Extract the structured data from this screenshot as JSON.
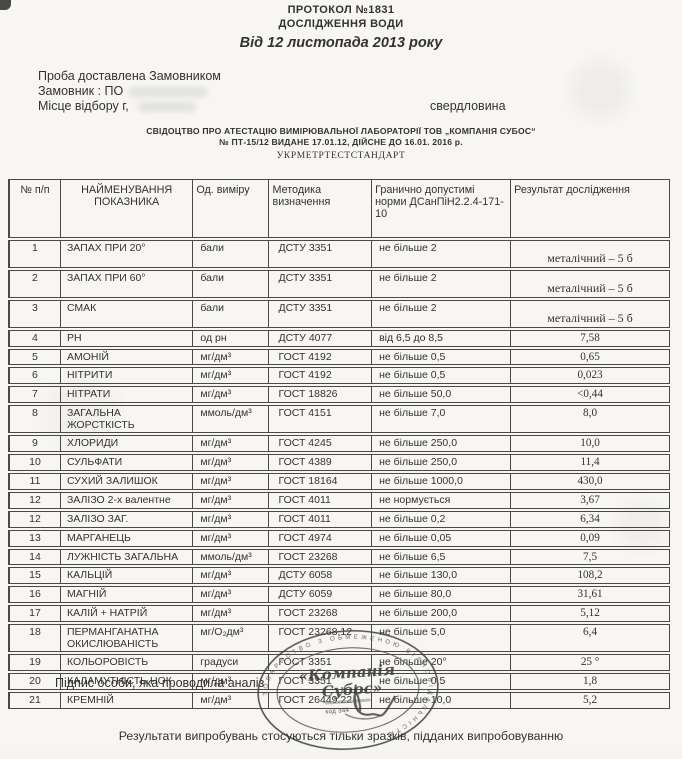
{
  "doc": {
    "title_line1": "ПРОТОКОЛ №1831",
    "title_line2": "ДОСЛІДЖЕННЯ ВОДИ",
    "title_line3": "Від 12 листопада 2013 року",
    "sample_line": "Проба доставлена Замовником",
    "customer_line": "Замовник : ПО",
    "place_label": "Місце відбору г,",
    "place_value": "свердловина",
    "certificate_line1": "СВІДОЦТВО ПРО АТЕСТАЦІЮ ВИМІРЮВАЛЬНОЇ ЛАБОРАТОРІЇ ТОВ „КОМПАНІЯ СУБОС“",
    "certificate_line2": "№ ПТ-15/12 ВИДАНЕ 17.01.12, ДІЙСНЕ ДО 16.01. 2016 р.",
    "certificate_line3": "УКРМЕТРТЕСТСТАНДАРТ",
    "signature_line": "Підпис особи, яка проводила аналіз",
    "footer_line": "Результати випробувань стосуються тільки зразків, підданих випробовуванню"
  },
  "table": {
    "headers": [
      "№ п/п",
      "НАЙМЕНУВАННЯ ПОКАЗНИКА",
      "Од. виміру",
      "Методика визначення",
      "Гранично допустимі норми ДСанПіН2.2.4-171-10",
      "Результат дослідження"
    ],
    "rows": [
      {
        "n": "1",
        "name": "ЗАПАХ ПРИ 20°",
        "unit": "бали",
        "method": "ДСТУ 3351",
        "norm": "не більше 2",
        "result": "металічний – 5 б",
        "result_low": true
      },
      {
        "n": "2",
        "name": "ЗАПАХ ПРИ 60°",
        "unit": "бали",
        "method": "ДСТУ 3351",
        "norm": "не більше 2",
        "result": "металічний – 5 б",
        "result_low": true
      },
      {
        "n": "3",
        "name": "СМАК",
        "unit": "бали",
        "method": "ДСТУ 3351",
        "norm": "не більше 2",
        "result": "металічний – 5 б",
        "result_low": true
      },
      {
        "n": "4",
        "name": "РН",
        "unit": "од рн",
        "method": "ДСТУ 4077",
        "norm": "від 6,5 до 8,5",
        "result": "7,58"
      },
      {
        "n": "5",
        "name": "АМОНІЙ",
        "unit": "мг/дм³",
        "method": "ГОСТ 4192",
        "norm": "не більше 0,5",
        "result": "0,65"
      },
      {
        "n": "6",
        "name": "НІТРИТИ",
        "unit": "мг/дм³",
        "method": "ГОСТ 4192",
        "norm": "не більше 0,5",
        "result": "0,023"
      },
      {
        "n": "7",
        "name": "НІТРАТИ",
        "unit": "мг/дм³",
        "method": "ГОСТ 18826",
        "norm": "не більше 50,0",
        "result": "<0,44"
      },
      {
        "n": "8",
        "name": "ЗАГАЛЬНА ЖОРСТКІСТЬ",
        "unit": "ммоль/дм³",
        "method": "ГОСТ 4151",
        "norm": "не більше 7,0",
        "result": "8,0"
      },
      {
        "n": "9",
        "name": "ХЛОРИДИ",
        "unit": "мг/дм³",
        "method": "ГОСТ 4245",
        "norm": "не більше 250,0",
        "result": "10,0"
      },
      {
        "n": "10",
        "name": "СУЛЬФАТИ",
        "unit": "мг/дм³",
        "method": "ГОСТ 4389",
        "norm": "не більше 250,0",
        "result": "11,4"
      },
      {
        "n": "11",
        "name": "СУХИЙ ЗАЛИШОК",
        "unit": "мг/дм³",
        "method": "ГОСТ 18164",
        "norm": "не більше 1000,0",
        "result": "430,0"
      },
      {
        "n": "12",
        "name": "ЗАЛІЗО 2-х валентне",
        "unit": "мг/дм³",
        "method": "ГОСТ 4011",
        "norm": "не нормується",
        "result": "3,67"
      },
      {
        "n": "12",
        "name": "ЗАЛІЗО ЗАГ.",
        "unit": "мг/дм³",
        "method": "ГОСТ 4011",
        "norm": "не більше 0,2",
        "result": "6,34"
      },
      {
        "n": "13",
        "name": "МАРГАНЕЦЬ",
        "unit": "мг/дм³",
        "method": "ГОСТ 4974",
        "norm": "не більше 0,05",
        "result": "0,09"
      },
      {
        "n": "14",
        "name": "ЛУЖНІСТЬ ЗАГАЛЬНА",
        "unit": "ммоль/дм³",
        "method": "ГОСТ 23268",
        "norm": "не більше 6,5",
        "result": "7,5"
      },
      {
        "n": "15",
        "name": "КАЛЬЦІЙ",
        "unit": "мг/дм³",
        "method": "ДСТУ 6058",
        "norm": "не більше 130,0",
        "result": "108,2"
      },
      {
        "n": "16",
        "name": "МАГНІЙ",
        "unit": "мг/дм³",
        "method": "ДСТУ 6059",
        "norm": "не більше 80,0",
        "result": "31,61"
      },
      {
        "n": "17",
        "name": "КАЛІЙ + НАТРІЙ",
        "unit": "мг/дм³",
        "method": "ГОСТ 23268",
        "norm": "не більше 200,0",
        "result": "5,12"
      },
      {
        "n": "18",
        "name": "ПЕРМАНГАНАТНА ОКИСЛЮВАНІСТЬ",
        "unit": "мг/О₂дм³",
        "method": "ГОСТ 23268.12",
        "norm": "не більше 5,0",
        "result": "6,4"
      },
      {
        "n": "19",
        "name": "КОЛЬОРОВІСТЬ",
        "unit": "градуси",
        "method": "ГОСТ 3351",
        "norm": "не більше 20°",
        "result": "25 °"
      },
      {
        "n": "20",
        "name": "КАЛАМУТНІСТЬ,НОК",
        "unit": "мг/дм³",
        "method": "ГОСТ 3351",
        "norm": "не більше 0,5",
        "result": "1,8"
      },
      {
        "n": "21",
        "name": "КРЕМНІЙ",
        "unit": "мг/дм³",
        "method": "ГОСТ 26449.22",
        "norm": "не більше 10,0",
        "result": "5,2"
      }
    ]
  },
  "stamp": {
    "ring_text": "ТОВАРИСТВО З ОБМЕЖЕНОЮ ВІДПОВІДАЛЬНІСТЮ",
    "name_line1": "«Компанія",
    "name_line2": "Субос»",
    "code_line": "код 344"
  },
  "colors": {
    "paper": "#f5f4f1",
    "ink": "#343434",
    "table_border": "#4a4a4a",
    "stamp_ink": "#3f3f3f"
  }
}
